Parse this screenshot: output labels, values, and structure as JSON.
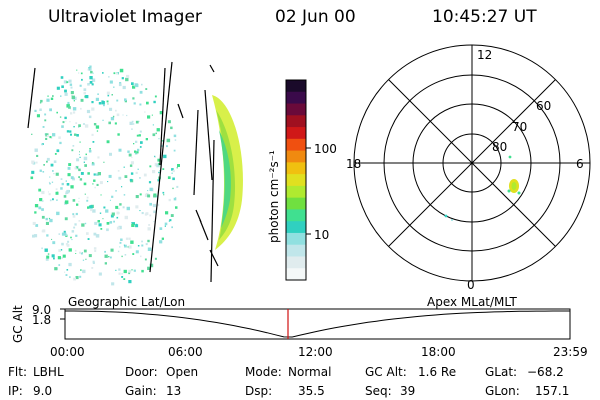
{
  "header": {
    "instrument": "Ultraviolet Imager",
    "date": "02 Jun 00",
    "time": "10:45:27 UT"
  },
  "colorbar": {
    "label": "photon cm⁻²s⁻¹",
    "ticks": [
      "100",
      "10"
    ],
    "scale": "log",
    "colors": [
      "#1a0a2a",
      "#3a0a4a",
      "#6a0a3a",
      "#a01020",
      "#d01818",
      "#f05010",
      "#f08a10",
      "#f0c010",
      "#e0e020",
      "#b0ea30",
      "#70e040",
      "#40e090",
      "#30d0c0",
      "#90e0e0",
      "#c0e6ea",
      "#e0ecee",
      "#f4f8f8"
    ]
  },
  "polar_plot": {
    "clock_labels": {
      "top": "12",
      "left": "18",
      "right": "6",
      "bottom": "0"
    },
    "lat_labels": [
      "60",
      "70",
      "80"
    ]
  },
  "timeline": {
    "gc_alt_label": "GC Alt",
    "alt_ticks": [
      "9.0",
      "1.8"
    ],
    "left_caption": "Geographic Lat/Lon",
    "right_caption": "Apex MLat/MLT",
    "time_ticks": [
      "00:00",
      "06:00",
      "12:00",
      "18:00",
      "23:59"
    ],
    "marker_time": "10:45"
  },
  "info": {
    "flt_label": "Flt:",
    "flt_value": "LBHL",
    "ip_label": "IP:",
    "ip_value": "9.0",
    "door_label": "Door:",
    "door_value": "Open",
    "gain_label": "Gain:",
    "gain_value": "13",
    "mode_label": "Mode:",
    "mode_value": "Normal",
    "dsp_label": "Dsp:",
    "dsp_value": "35.5",
    "gcalt_label": "GC Alt:",
    "gcalt_value": "1.6 Re",
    "seq_label": "Seq:",
    "seq_value": "39",
    "glat_label": "GLat:",
    "glat_value": "−68.2",
    "glon_label": "GLon:",
    "glon_value": "157.1"
  }
}
